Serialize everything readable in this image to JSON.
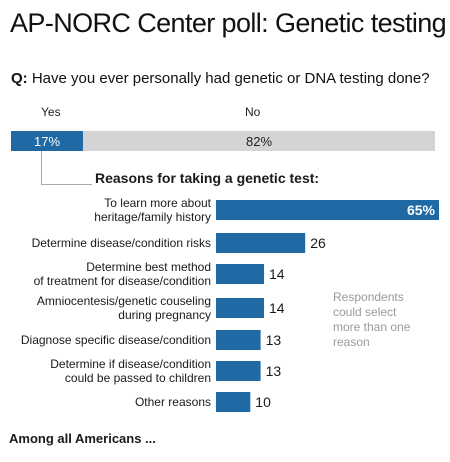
{
  "header": {
    "title": "AP-NORC Center poll: Genetic testing",
    "question_prefix": "Q:",
    "question_text": "Have you ever personally had genetic or DNA testing done?"
  },
  "split": {
    "yes_label": "Yes",
    "no_label": "No",
    "yes_value": 17,
    "no_value": 82,
    "yes_text": "17%",
    "no_text": "82%",
    "yes_color": "#1f6aa5",
    "no_color": "#d4d4d6"
  },
  "reasons_title": "Reasons for taking a genetic test:",
  "chart_data": {
    "type": "bar",
    "orientation": "horizontal",
    "title": "Reasons for taking a genetic test:",
    "categories": [
      [
        "To learn more about",
        "heritage/family history"
      ],
      [
        "Determine disease/condition risks"
      ],
      [
        "Determine best method",
        "of treatment for disease/condition"
      ],
      [
        "Amniocentesis/genetic couseling",
        "during pregnancy"
      ],
      [
        "Diagnose specific disease/condition"
      ],
      [
        "Determine if disease/condition",
        "could be passed to children"
      ],
      [
        "Other reasons"
      ]
    ],
    "values": [
      65,
      26,
      14,
      14,
      13,
      13,
      10
    ],
    "value_labels": [
      "65%",
      "26",
      "14",
      "14",
      "13",
      "13",
      "10"
    ],
    "xlim": [
      0,
      65
    ],
    "bar_color": "#1f6aa5",
    "grid": false
  },
  "note": "Respondents\ncould select\nmore than one\nreason",
  "footer": "Among all Americans ..."
}
